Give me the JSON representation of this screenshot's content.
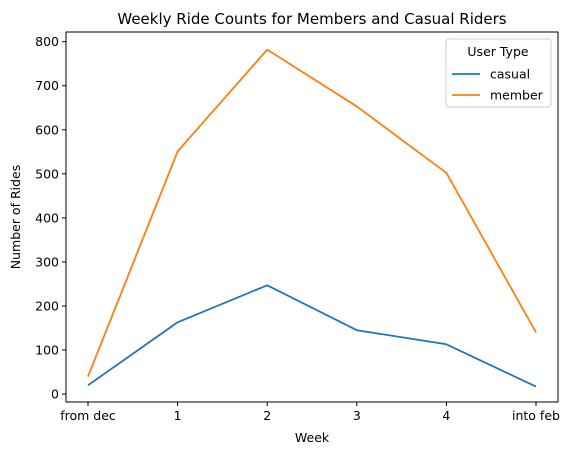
{
  "chart_data": {
    "type": "line",
    "title": "Weekly Ride Counts for Members and Casual Riders",
    "xlabel": "Week",
    "ylabel": "Number of Rides",
    "categories": [
      "from dec",
      "1",
      "2",
      "3",
      "4",
      "into feb"
    ],
    "ylim": [
      -18,
      822
    ],
    "yticks": [
      0,
      100,
      200,
      300,
      400,
      500,
      600,
      700,
      800
    ],
    "grid": false,
    "legend": {
      "title": "User Type",
      "placement": "top-right"
    },
    "series": [
      {
        "name": "casual",
        "color": "#1f77b4",
        "values": [
          20,
          163,
          247,
          145,
          113,
          17
        ]
      },
      {
        "name": "member",
        "color": "#ff7f0e",
        "values": [
          40,
          551,
          782,
          653,
          502,
          140
        ]
      }
    ]
  }
}
